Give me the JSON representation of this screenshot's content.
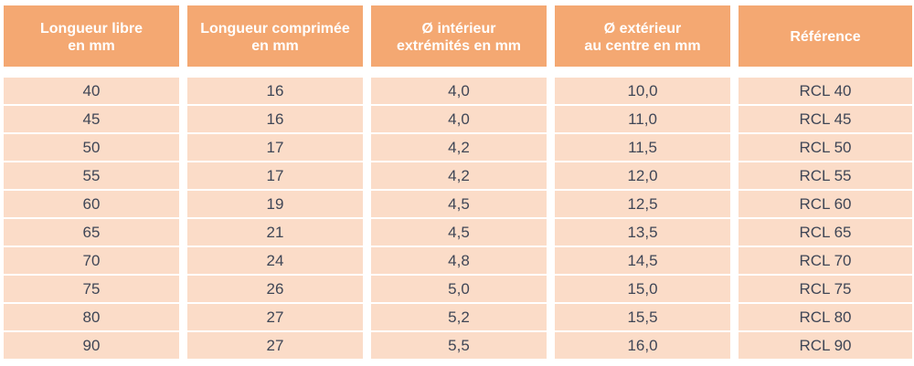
{
  "table": {
    "headers": [
      "Longueur libre\nen mm",
      "Longueur comprimée\nen mm",
      "Ø intérieur\nextrémités en mm",
      "Ø extérieur\nau centre en mm",
      "Référence"
    ],
    "rows": [
      [
        "40",
        "16",
        "4,0",
        "10,0",
        "RCL 40"
      ],
      [
        "45",
        "16",
        "4,0",
        "11,0",
        "RCL 45"
      ],
      [
        "50",
        "17",
        "4,2",
        "11,5",
        "RCL 50"
      ],
      [
        "55",
        "17",
        "4,2",
        "12,0",
        "RCL 55"
      ],
      [
        "60",
        "19",
        "4,5",
        "12,5",
        "RCL 60"
      ],
      [
        "65",
        "21",
        "4,5",
        "13,5",
        "RCL 65"
      ],
      [
        "70",
        "24",
        "4,8",
        "14,5",
        "RCL 70"
      ],
      [
        "75",
        "26",
        "5,0",
        "15,0",
        "RCL 75"
      ],
      [
        "80",
        "27",
        "5,2",
        "15,5",
        "RCL 80"
      ],
      [
        "90",
        "27",
        "5,5",
        "16,0",
        "RCL 90"
      ]
    ]
  },
  "colors": {
    "header_bg": "#f4a872",
    "header_text": "#ffffff",
    "cell_bg": "#fbdcc8",
    "cell_text": "#3f4656"
  }
}
